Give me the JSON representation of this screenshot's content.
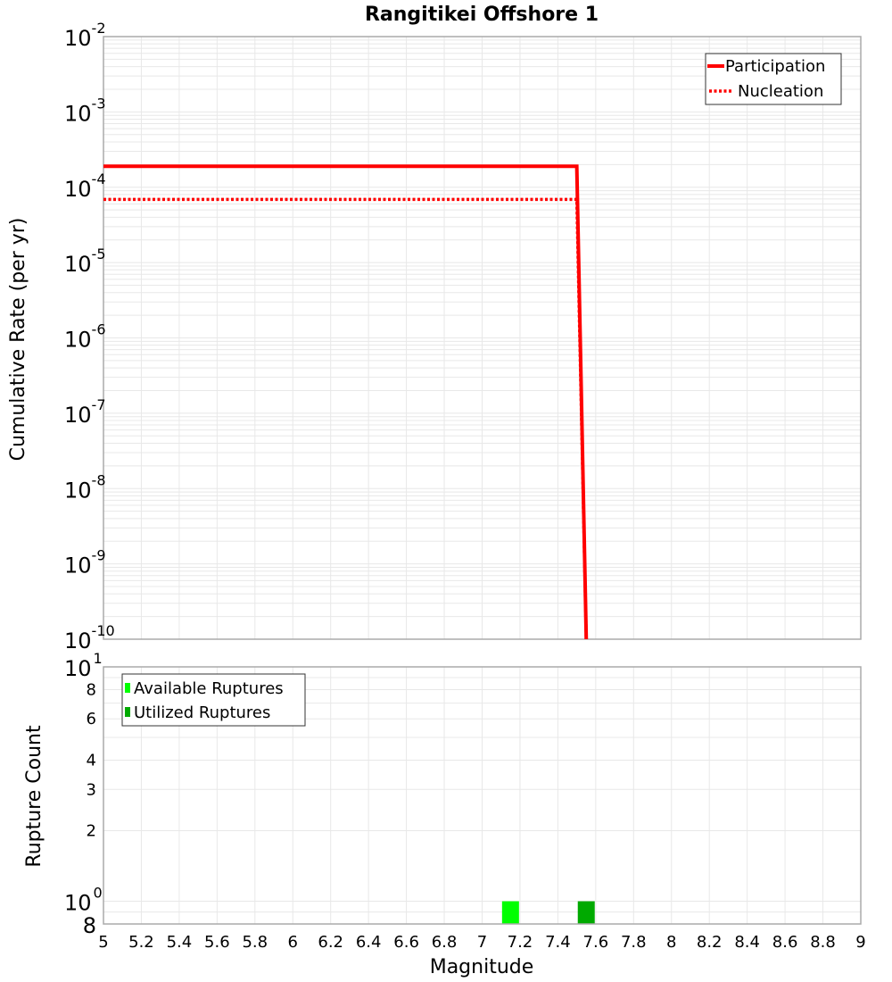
{
  "chart_data": [
    {
      "type": "line",
      "title": "Rangitikei Offshore 1",
      "xlabel": "Magnitude",
      "ylabel": "Cumulative Rate (per yr)",
      "xlim": [
        5,
        9
      ],
      "ylim": [
        1e-10,
        0.01
      ],
      "yscale": "log",
      "grid": true,
      "legend_position": "top-right",
      "x_ticks": [
        "5",
        "5.2",
        "5.4",
        "5.6",
        "5.8",
        "6",
        "6.2",
        "6.4",
        "6.6",
        "6.8",
        "7",
        "7.2",
        "7.4",
        "7.6",
        "7.8",
        "8",
        "8.2",
        "8.4",
        "8.6",
        "8.8",
        "9"
      ],
      "y_ticks": [
        {
          "base": "10",
          "exp": "-2",
          "value": 0.01
        },
        {
          "base": "10",
          "exp": "-3",
          "value": 0.001
        },
        {
          "base": "10",
          "exp": "-4",
          "value": 0.0001
        },
        {
          "base": "10",
          "exp": "-5",
          "value": 1e-05
        },
        {
          "base": "10",
          "exp": "-6",
          "value": 1e-06
        },
        {
          "base": "10",
          "exp": "-7",
          "value": 1e-07
        },
        {
          "base": "10",
          "exp": "-8",
          "value": 1e-08
        },
        {
          "base": "10",
          "exp": "-9",
          "value": 1e-09
        },
        {
          "base": "10",
          "exp": "-10",
          "value": 1e-10
        }
      ],
      "series": [
        {
          "name": "Participation",
          "color": "#ff0000",
          "style": "solid",
          "x": [
            5.0,
            7.5,
            7.55
          ],
          "y": [
            0.00019,
            0.00019,
            1e-10
          ]
        },
        {
          "name": "Nucleation",
          "color": "#ff0000",
          "style": "dotted",
          "x": [
            5.0,
            7.5,
            7.55
          ],
          "y": [
            6.9e-05,
            6.9e-05,
            1e-10
          ]
        }
      ]
    },
    {
      "type": "bar",
      "xlabel": "Magnitude",
      "ylabel": "Rupture Count",
      "xlim": [
        5,
        9
      ],
      "ylim": [
        0.8,
        10
      ],
      "yscale": "log",
      "grid": true,
      "legend_position": "top-left",
      "y_ticks": [
        {
          "label": "10",
          "exp": "1",
          "value": 10,
          "major": true
        },
        {
          "label": "8",
          "value": 8
        },
        {
          "label": "6",
          "value": 6
        },
        {
          "label": "4",
          "value": 4
        },
        {
          "label": "3",
          "value": 3
        },
        {
          "label": "2",
          "value": 2
        },
        {
          "label": "10",
          "exp": "0",
          "value": 1,
          "major": true
        },
        {
          "label": "8",
          "value": 0.8,
          "major_size": true
        }
      ],
      "series": [
        {
          "name": "Available Ruptures",
          "color": "#00ff00",
          "x": [
            7.15
          ],
          "values": [
            1
          ]
        },
        {
          "name": "Utilized Ruptures",
          "color": "#00aa00",
          "x": [
            7.55
          ],
          "values": [
            1
          ]
        }
      ]
    }
  ]
}
